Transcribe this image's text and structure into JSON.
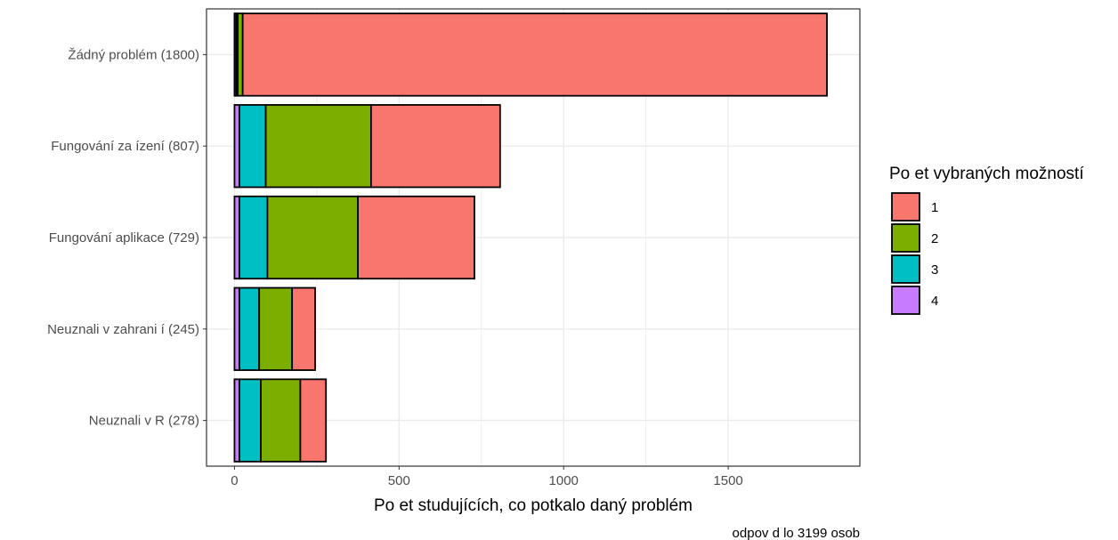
{
  "chart_data": {
    "type": "bar",
    "orientation": "horizontal",
    "stacked": true,
    "categories": [
      "Žádný problém (1800)",
      "Fungování za ízení (807)",
      "Fungování aplikace (729)",
      "Neuznali v zahrani í (245)",
      "Neuznali v  R (278)"
    ],
    "series": [
      {
        "name": "4",
        "color": "#C77CFF",
        "values": [
          5,
          15,
          15,
          15,
          15
        ]
      },
      {
        "name": "3",
        "color": "#00BFC4",
        "values": [
          5,
          80,
          85,
          60,
          65
        ]
      },
      {
        "name": "2",
        "color": "#7CAE00",
        "values": [
          15,
          320,
          275,
          100,
          120
        ]
      },
      {
        "name": "1",
        "color": "#F8766D",
        "values": [
          1775,
          392,
          354,
          70,
          78
        ]
      }
    ],
    "xlabel": "Po et studujících, co potkalo daný problém",
    "ylabel": "",
    "xlim": [
      -85,
      1900
    ],
    "xticks": [
      0,
      500,
      1000,
      1500
    ],
    "grid": true,
    "legend": {
      "title": "Po et vybraných možností",
      "placement": "right",
      "order": [
        "1",
        "2",
        "3",
        "4"
      ]
    },
    "caption": "odpov d lo 3199 osob"
  }
}
